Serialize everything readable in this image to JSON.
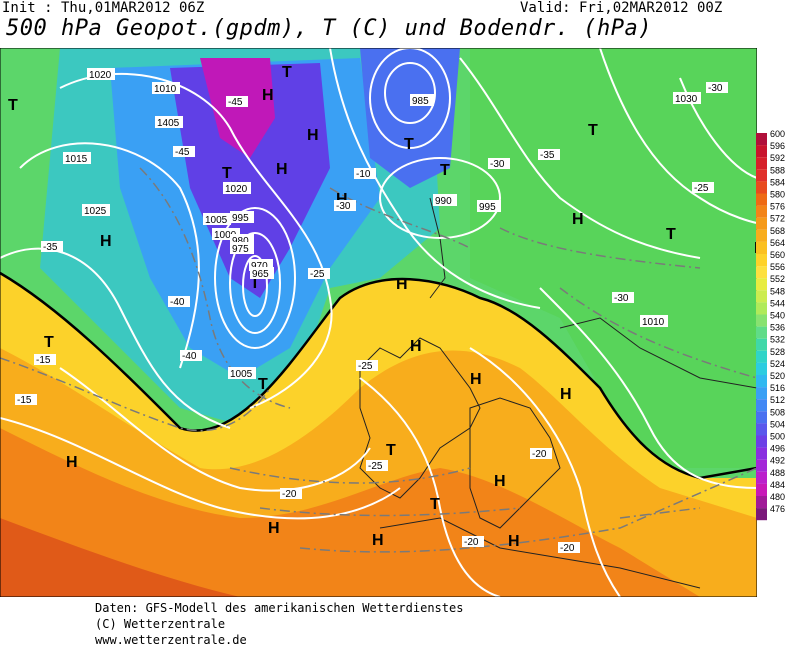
{
  "header": {
    "init": "Init : Thu,01MAR2012 06Z",
    "valid": "Valid: Fri,02MAR2012 00Z",
    "title": "500 hPa Geopot.(gpdm), T (C) und Bodendr. (hPa)"
  },
  "credits": {
    "line1": "Daten: GFS-Modell des amerikanischen Wetterdienstes",
    "line2": "(C) Wetterzentrale",
    "line3": "www.wetterzentrale.de"
  },
  "legend": {
    "levels": [
      "600",
      "596",
      "592",
      "588",
      "584",
      "580",
      "576",
      "572",
      "568",
      "564",
      "560",
      "556",
      "552",
      "548",
      "544",
      "540",
      "536",
      "532",
      "528",
      "524",
      "520",
      "516",
      "512",
      "508",
      "504",
      "500",
      "496",
      "492",
      "488",
      "484",
      "480",
      "476"
    ],
    "colors": [
      "#b0103a",
      "#c8142c",
      "#d6202a",
      "#e0302a",
      "#e84b1e",
      "#ee6a14",
      "#f28418",
      "#f59a1a",
      "#f8ad1c",
      "#fbc020",
      "#fed22a",
      "#fde040",
      "#e8ec40",
      "#ccec50",
      "#b0ea5a",
      "#88e270",
      "#60dc88",
      "#40d8a8",
      "#30d4c8",
      "#2ccce0",
      "#30b8f0",
      "#3aa0f4",
      "#4288f4",
      "#4a70f0",
      "#5a58ec",
      "#6c40e6",
      "#8a30e0",
      "#a428d8",
      "#bb20cc",
      "#c818b8",
      "#a01a98",
      "#7a187a"
    ]
  },
  "map": {
    "pressure_labels": [
      "1020",
      "1010",
      "1015",
      "1025",
      "1005",
      "1000",
      "995",
      "990",
      "985",
      "980",
      "975",
      "970",
      "965",
      "1030",
      "1405",
      "1020",
      "1010",
      "1005",
      "995"
    ],
    "temperature_labels": [
      "-45",
      "-40",
      "-35",
      "-30",
      "-25",
      "-20",
      "-15",
      "-10"
    ],
    "high_marker": "H",
    "low_marker": "T"
  }
}
